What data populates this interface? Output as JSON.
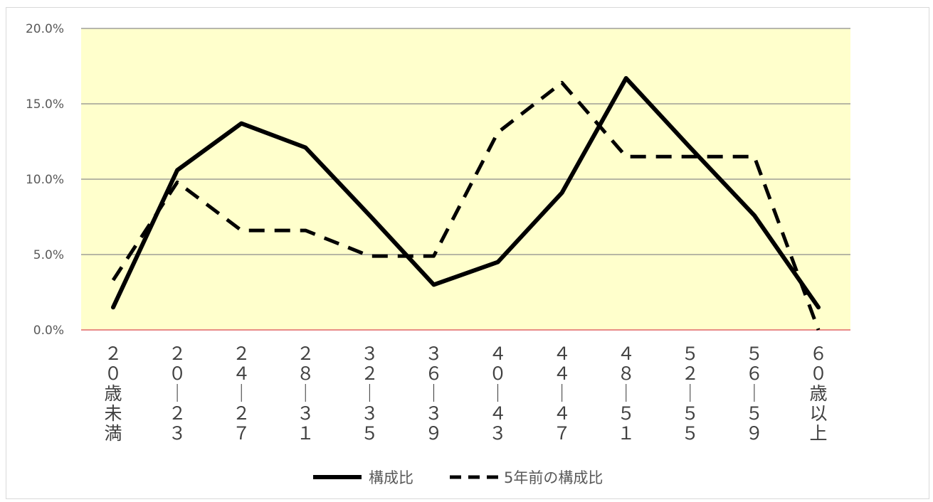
{
  "chart_data": {
    "type": "line",
    "title": "",
    "xlabel": "",
    "ylabel": "",
    "categories": [
      "20歳未満",
      "20－23",
      "24－27",
      "28－31",
      "32－35",
      "36－39",
      "40－43",
      "44－47",
      "48－51",
      "52－55",
      "56－59",
      "60歳以上"
    ],
    "category_glyphs": [
      [
        "２",
        "０",
        "歳",
        "未",
        "満"
      ],
      [
        "２",
        "０",
        "｜",
        "２",
        "３"
      ],
      [
        "２",
        "４",
        "｜",
        "２",
        "７"
      ],
      [
        "２",
        "８",
        "｜",
        "３",
        "１"
      ],
      [
        "３",
        "２",
        "｜",
        "３",
        "５"
      ],
      [
        "３",
        "６",
        "｜",
        "３",
        "９"
      ],
      [
        "４",
        "０",
        "｜",
        "４",
        "３"
      ],
      [
        "４",
        "４",
        "｜",
        "４",
        "７"
      ],
      [
        "４",
        "８",
        "｜",
        "５",
        "１"
      ],
      [
        "５",
        "２",
        "｜",
        "５",
        "５"
      ],
      [
        "５",
        "６",
        "｜",
        "５",
        "９"
      ],
      [
        "６",
        "０",
        "歳",
        "以",
        "上"
      ]
    ],
    "ylim": [
      0,
      0.2
    ],
    "yticks": [
      0,
      0.05,
      0.1,
      0.15,
      0.2
    ],
    "ytick_labels": [
      "0.0%",
      "5.0%",
      "10.0%",
      "15.0%",
      "20.0%"
    ],
    "grid": true,
    "plot_background": "#FFFFCC",
    "legend_position": "bottom",
    "series": [
      {
        "name": "構成比",
        "style": "solid",
        "color": "#000000",
        "values": [
          0.015,
          0.106,
          0.137,
          0.121,
          0.076,
          0.03,
          0.045,
          0.091,
          0.167,
          0.121,
          0.076,
          0.015
        ]
      },
      {
        "name": "5年前の構成比",
        "style": "dashed",
        "color": "#000000",
        "values": [
          0.033,
          0.098,
          0.066,
          0.066,
          0.049,
          0.049,
          0.131,
          0.164,
          0.115,
          0.115,
          0.115,
          0.0
        ]
      }
    ],
    "colors": {
      "gridline": "#8c8c8c",
      "baseline": "#e06666",
      "axis_text": "#595959"
    }
  }
}
